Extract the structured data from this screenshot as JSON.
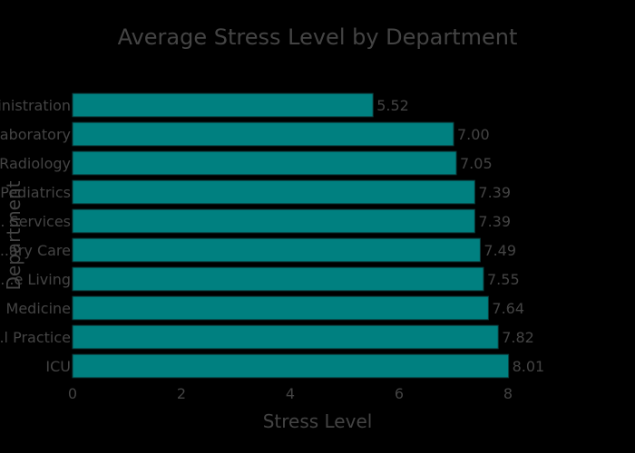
{
  "chart_data": {
    "type": "bar",
    "orientation": "horizontal",
    "title": "Average Stress Level by Department",
    "xlabel": "Stress Level",
    "ylabel": "Department",
    "categories": [
      "ICU",
      "...l Practice",
      "... Medicine",
      "...e Living",
      "...ary Care",
      "... Services",
      "Pediatrics",
      "Radiology",
      "...aboratory",
      "...inistration"
    ],
    "values": [
      8.01,
      7.82,
      7.64,
      7.55,
      7.49,
      7.39,
      7.39,
      7.05,
      7.0,
      5.52
    ],
    "value_labels": [
      "8.01",
      "7.82",
      "7.64",
      "7.55",
      "7.49",
      "7.39",
      "7.39",
      "7.05",
      "7.00",
      "5.52"
    ],
    "xlim": [
      0,
      8
    ],
    "xticks": [
      0,
      2,
      4,
      6,
      8
    ],
    "grid": false,
    "legend": "none",
    "colors": {
      "background": "#000000",
      "bar": "#008080",
      "text": "#444444"
    }
  }
}
